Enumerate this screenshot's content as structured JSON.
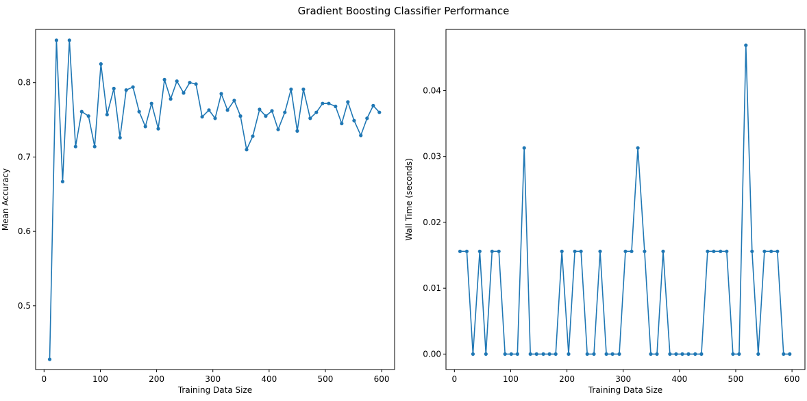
{
  "suptitle": "Gradient Boosting Classifier Performance",
  "colors": {
    "series": "#1f77b4",
    "axis": "#000000"
  },
  "chart_data": [
    {
      "type": "line",
      "xlabel": "Training Data Size",
      "ylabel": "Mean Accuracy",
      "xlim": [
        -15,
        623
      ],
      "ylim": [
        0.4143,
        0.8715
      ],
      "xticks": [
        0,
        100,
        200,
        300,
        400,
        500,
        600
      ],
      "yticks": [
        0.5,
        0.6,
        0.7,
        0.8
      ],
      "ytick_labels": [
        "0.5",
        "0.6",
        "0.7",
        "0.8"
      ],
      "grid": false,
      "series": [
        {
          "marker": "dot",
          "x": [
            10,
            22,
            33,
            45,
            56,
            67,
            79,
            90,
            101,
            112,
            124,
            135,
            146,
            158,
            169,
            180,
            191,
            203,
            214,
            225,
            236,
            248,
            259,
            270,
            281,
            293,
            304,
            315,
            326,
            338,
            349,
            360,
            371,
            383,
            394,
            405,
            416,
            428,
            439,
            450,
            461,
            473,
            484,
            495,
            506,
            518,
            529,
            540,
            551,
            563,
            574,
            585,
            596
          ],
          "y": [
            0.428,
            0.857,
            0.667,
            0.857,
            0.714,
            0.761,
            0.755,
            0.714,
            0.825,
            0.757,
            0.792,
            0.726,
            0.79,
            0.794,
            0.761,
            0.741,
            0.772,
            0.738,
            0.804,
            0.778,
            0.802,
            0.786,
            0.8,
            0.798,
            0.754,
            0.763,
            0.752,
            0.785,
            0.763,
            0.776,
            0.755,
            0.71,
            0.728,
            0.764,
            0.755,
            0.762,
            0.737,
            0.76,
            0.791,
            0.735,
            0.791,
            0.752,
            0.76,
            0.772,
            0.772,
            0.768,
            0.745,
            0.774,
            0.749,
            0.729,
            0.752,
            0.769,
            0.76
          ]
        }
      ]
    },
    {
      "type": "line",
      "xlabel": "Training Data Size",
      "ylabel": "Wall Time (seconds)",
      "xlim": [
        -15,
        623
      ],
      "ylim": [
        -0.00235,
        0.0493
      ],
      "xticks": [
        0,
        100,
        200,
        300,
        400,
        500,
        600
      ],
      "yticks": [
        0,
        0.01,
        0.02,
        0.03,
        0.04
      ],
      "ytick_labels": [
        "0.00",
        "0.01",
        "0.02",
        "0.03",
        "0.04"
      ],
      "grid": false,
      "series": [
        {
          "marker": "dot",
          "x": [
            10,
            22,
            33,
            45,
            56,
            67,
            79,
            90,
            101,
            112,
            124,
            135,
            146,
            158,
            169,
            180,
            191,
            203,
            214,
            225,
            236,
            248,
            259,
            270,
            281,
            293,
            304,
            315,
            326,
            338,
            349,
            360,
            371,
            383,
            394,
            405,
            416,
            428,
            439,
            450,
            461,
            473,
            484,
            495,
            506,
            518,
            529,
            540,
            551,
            563,
            574,
            585,
            596
          ],
          "y": [
            0.0156,
            0.0156,
            0,
            0.0156,
            0,
            0.0156,
            0.0156,
            0,
            0,
            0,
            0.0313,
            0,
            0,
            0,
            0,
            0,
            0.0156,
            0,
            0.0156,
            0.0156,
            0,
            0,
            0.0156,
            0,
            0,
            0,
            0.0156,
            0.0156,
            0.0313,
            0.0156,
            0,
            0,
            0.0156,
            0,
            0,
            0,
            0,
            0,
            0,
            0.0156,
            0.0156,
            0.0156,
            0.0156,
            0,
            0,
            0.0469,
            0.0156,
            0,
            0.0156,
            0.0156,
            0.0156,
            0,
            0
          ]
        }
      ]
    }
  ]
}
